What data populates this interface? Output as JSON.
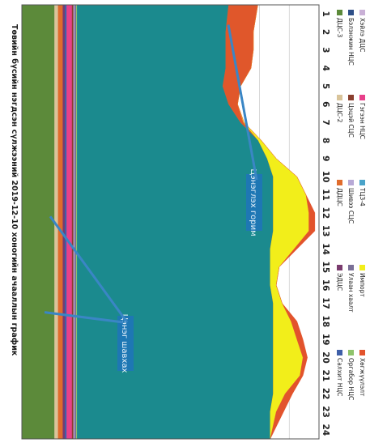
{
  "chart_data": {
    "type": "area",
    "orientation": "rotated-90-clockwise",
    "title": "Төвийн бүсийн нэгдсэн сүлжээний 2019-12-10 хоногийн ачааллын график",
    "x": [
      1,
      2,
      3,
      4,
      5,
      6,
      7,
      8,
      9,
      10,
      11,
      12,
      13,
      14,
      15,
      16,
      17,
      18,
      19,
      20,
      21,
      22,
      23,
      24
    ],
    "x_tick_labels": [
      "1",
      "2",
      "3",
      "4",
      "5",
      "6",
      "7",
      "8",
      "9",
      "10",
      "11",
      "12",
      "13",
      "14",
      "15",
      "16",
      "17",
      "18",
      "19",
      "20",
      "21",
      "22",
      "23",
      "24"
    ],
    "annotations": [
      {
        "text": "Цэнэглэх горим",
        "arrow_to_hour": 1.6
      },
      {
        "text": "Цэнэг шавхах",
        "arrow_to_hour": 12.2
      },
      {
        "text": "Цэнэг шавхах",
        "arrow_to_hour": 17.5
      }
    ],
    "legend_position": "bottom",
    "series": [
      {
        "name": "ДЦС-3",
        "color": "#5c8a3a",
        "values": [
          11,
          11,
          11,
          11,
          11,
          11,
          11,
          11,
          11,
          11,
          11,
          11,
          11,
          11,
          11,
          11,
          11,
          11,
          11,
          11,
          11,
          11,
          11,
          11
        ]
      },
      {
        "name": "ДЦС-2",
        "color": "#d9c49a",
        "values": [
          1.2,
          1.2,
          1.2,
          1.2,
          1.2,
          1.2,
          1.2,
          1.2,
          1.2,
          1.2,
          1.2,
          1.2,
          1.2,
          1.2,
          1.2,
          1.2,
          1.2,
          1.2,
          1.2,
          1.2,
          1.2,
          1.2,
          1.2,
          1.2
        ]
      },
      {
        "name": "ДДЦС",
        "color": "#e06c2c",
        "values": [
          1.6,
          1.6,
          1.6,
          1.6,
          1.6,
          1.6,
          1.6,
          1.6,
          1.6,
          1.6,
          1.6,
          1.6,
          1.6,
          1.6,
          1.6,
          1.6,
          1.6,
          1.6,
          1.6,
          1.6,
          1.6,
          1.6,
          1.6,
          1.6
        ]
      },
      {
        "name": "ЭДЦС",
        "color": "#7a3b6e",
        "values": [
          0.7,
          0.7,
          0.7,
          0.7,
          0.7,
          0.7,
          0.7,
          0.7,
          0.7,
          0.7,
          0.7,
          0.7,
          0.7,
          0.7,
          0.7,
          0.7,
          0.7,
          0.7,
          0.7,
          0.7,
          0.7,
          0.7,
          0.7,
          0.7
        ]
      },
      {
        "name": "Салхит НЦС",
        "color": "#3e5fa8",
        "values": [
          0.6,
          0.6,
          0.6,
          0.6,
          0.6,
          0.6,
          0.6,
          0.6,
          0.6,
          0.6,
          0.6,
          0.6,
          0.6,
          0.6,
          0.6,
          0.6,
          0.6,
          0.6,
          0.6,
          0.6,
          0.6,
          0.6,
          0.6,
          0.6
        ]
      },
      {
        "name": "Нар НЦС",
        "color": "#e8408a",
        "values": [
          1.8,
          1.8,
          1.8,
          1.8,
          1.8,
          1.8,
          1.8,
          1.8,
          1.8,
          1.8,
          1.8,
          1.8,
          1.8,
          1.8,
          1.8,
          1.8,
          1.8,
          1.8,
          1.8,
          1.8,
          1.8,
          1.8,
          1.8,
          1.8
        ]
      },
      {
        "name": "Цэцэй СЦС",
        "color": "#8a3f2e",
        "values": [
          0.5,
          0.5,
          0.5,
          0.5,
          0.5,
          0.5,
          0.5,
          0.5,
          0.5,
          0.5,
          0.5,
          0.5,
          0.5,
          0.5,
          0.5,
          0.5,
          0.5,
          0.5,
          0.5,
          0.5,
          0.5,
          0.5,
          0.5,
          0.5
        ]
      },
      {
        "name": "Шивээ СЦС",
        "color": "#b7a9d6",
        "values": [
          0.4,
          0.4,
          0.4,
          0.4,
          0.4,
          0.4,
          0.4,
          0.4,
          0.4,
          0.4,
          0.4,
          0.4,
          0.4,
          0.4,
          0.4,
          0.4,
          0.4,
          0.4,
          0.4,
          0.4,
          0.4,
          0.4,
          0.4,
          0.4
        ]
      },
      {
        "name": "Улаан хаалт",
        "color": "#7a6f96",
        "values": [
          0.5,
          0.5,
          0.5,
          0.5,
          0.5,
          0.5,
          0.5,
          0.5,
          0.5,
          0.5,
          0.5,
          0.5,
          0.5,
          0.5,
          0.5,
          0.5,
          0.5,
          0.5,
          0.5,
          0.5,
          0.5,
          0.5,
          0.5,
          0.5
        ]
      },
      {
        "name": "Оргабор НЦС",
        "color": "#8fc36b",
        "values": [
          0.3,
          0.3,
          0.3,
          0.3,
          0.3,
          0.3,
          0.3,
          0.3,
          0.3,
          0.3,
          0.3,
          0.3,
          0.3,
          0.3,
          0.3,
          0.3,
          0.3,
          0.3,
          0.3,
          0.3,
          0.3,
          0.3,
          0.3,
          0.3
        ]
      },
      {
        "name": "Импорт",
        "color": "#1b8a8e",
        "values": [
          51,
          50,
          50,
          50,
          49,
          51,
          55,
          61,
          64,
          66,
          66,
          66,
          66,
          65,
          65,
          65,
          66,
          66,
          66,
          66,
          66,
          66,
          65,
          65
        ]
      },
      {
        "name": "ТЦЗ-4",
        "color": "#e0572b",
        "values": [
          9.8,
          9.3,
          9.3,
          8.5,
          6,
          3,
          1,
          0,
          0,
          0,
          0,
          0,
          0,
          0,
          0,
          0,
          0,
          0,
          0,
          0,
          0,
          0,
          0,
          0
        ]
      },
      {
        "name": "Зүүн НЦС",
        "color": "#f2ee1a",
        "values": [
          0,
          0,
          0,
          0,
          0,
          0,
          0.2,
          1,
          3,
          8,
          11,
          12,
          12,
          8,
          3,
          2,
          3,
          6,
          8,
          10,
          9,
          4,
          2,
          0
        ]
      },
      {
        "name": "Хөгжүүлэлт",
        "color": "#e2532c",
        "values": [
          0,
          0,
          0,
          0,
          0,
          0,
          0,
          0,
          0,
          0,
          0,
          2,
          2,
          1,
          0,
          0,
          0,
          2,
          2,
          1.5,
          1,
          2.5,
          2.5,
          0
        ]
      }
    ],
    "legend": [
      [
        "ДЦС-3",
        "ДЦС-2",
        "ДДЦС",
        "ЭДЦС",
        "Салхит НЦС"
      ],
      [
        "Бэлэнжин НЦС",
        "Цэцэй СЦС",
        "Шивээ СЦС",
        "Улаан хаалт",
        "Оргабор НЦС"
      ],
      [
        "Хэйлэ ДЦС",
        "Гэгээн НЦС",
        "ТЦЗ-4",
        "Импорт",
        "Хөгжүүлэлт"
      ]
    ],
    "legend_colors": [
      [
        "#5c8a3a",
        "#d9c49a",
        "#e06c2c",
        "#7a3b6e",
        "#3e5fa8"
      ],
      [
        "#2e4f88",
        "#8a3f2e",
        "#b7a9d6",
        "#7a6f96",
        "#8fc36b"
      ],
      [
        "#c9b0d6",
        "#e8408a",
        "#4aa3c9",
        "#f2ee1a",
        "#e2532c"
      ]
    ],
    "ylim": [
      0,
      100
    ],
    "grid": true,
    "border": true
  }
}
